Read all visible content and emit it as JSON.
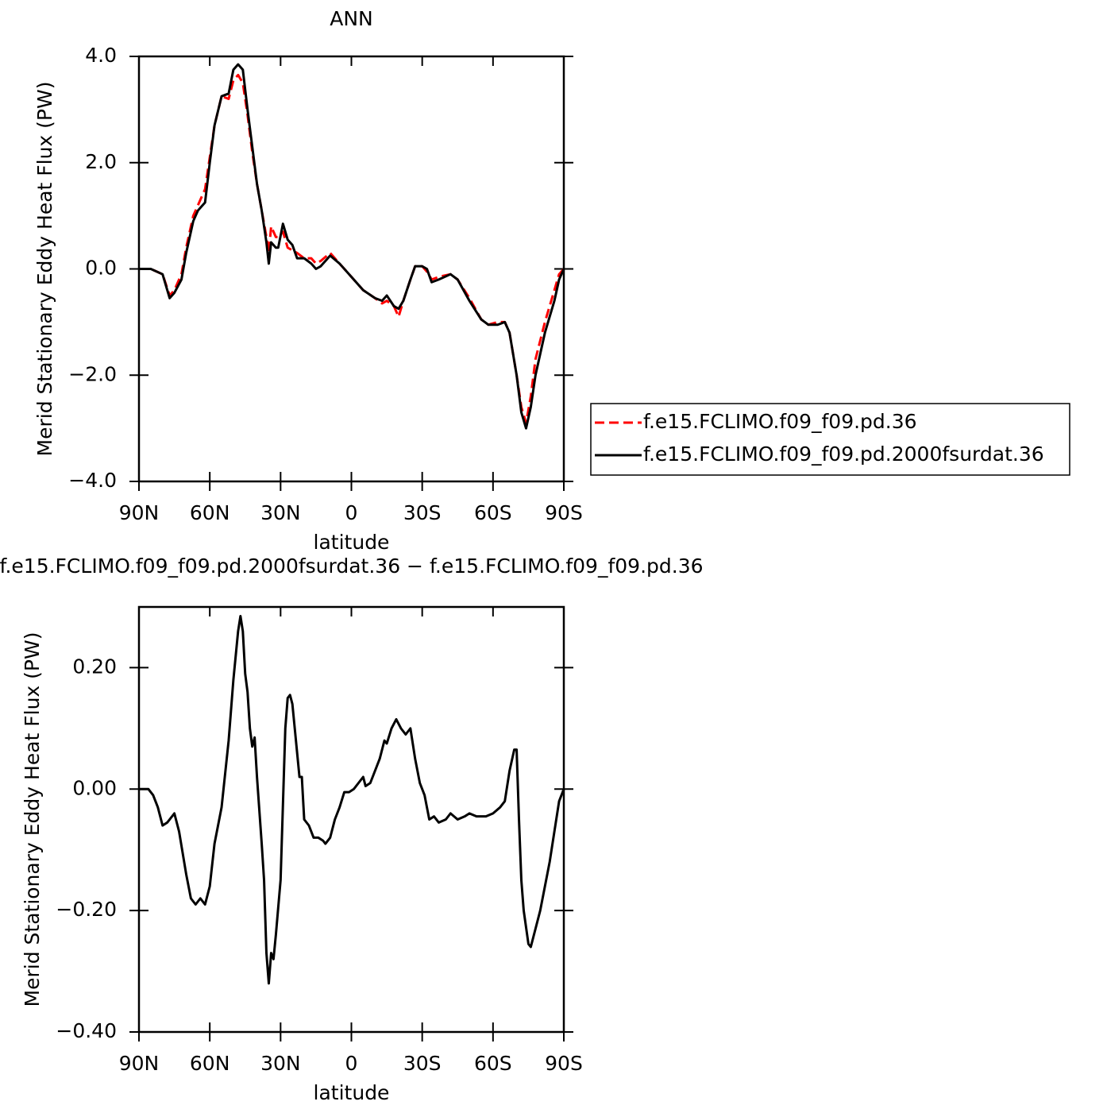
{
  "chart_data": [
    {
      "type": "line",
      "title": "ANN",
      "x_label": "latitude",
      "y_label": "Merid Stationary Eddy Heat Flux (PW)",
      "xlim": [
        90,
        -90
      ],
      "xticks": [
        {
          "value": 90,
          "label": "90N"
        },
        {
          "value": 60,
          "label": "60N"
        },
        {
          "value": 30,
          "label": "30N"
        },
        0,
        {
          "value": -30,
          "label": "30S"
        },
        {
          "value": -60,
          "label": "60S"
        },
        {
          "value": -90,
          "label": "90S"
        }
      ],
      "ylim": [
        -4,
        4
      ],
      "yticks": [
        {
          "value": -4,
          "label": "−4.0"
        },
        {
          "value": -2,
          "label": "−2.0"
        },
        {
          "value": 0,
          "label": "0.0"
        },
        {
          "value": 2,
          "label": "2.0"
        },
        {
          "value": 4,
          "label": "4.0"
        }
      ],
      "x": [
        90,
        85,
        80,
        77,
        75,
        72,
        70,
        67,
        65,
        62,
        60,
        58,
        55,
        52,
        50,
        48,
        46,
        44,
        42,
        40,
        38,
        36,
        35,
        34,
        32,
        31,
        29,
        27,
        25,
        23,
        20,
        17,
        15,
        13,
        9,
        5,
        0,
        -5,
        -10,
        -13,
        -15,
        -18,
        -20,
        -22,
        -25,
        -27,
        -30,
        -32,
        -34,
        -37,
        -42,
        -45,
        -50,
        -55,
        -58,
        -62,
        -65,
        -67,
        -70,
        -72,
        -74,
        -76,
        -78,
        -82,
        -86,
        -88,
        -90
      ],
      "series": [
        {
          "name": "f.e15.FCLIMO.f09_f09.pd.36",
          "color": "#ff0000",
          "dashed": true,
          "values": [
            0,
            0,
            -0.1,
            -0.5,
            -0.4,
            -0.1,
            0.4,
            1.0,
            1.2,
            1.5,
            2.1,
            2.7,
            3.25,
            3.2,
            3.55,
            3.65,
            3.5,
            2.9,
            2.2,
            1.6,
            1.1,
            0.6,
            0.3,
            0.8,
            0.6,
            0.6,
            0.7,
            0.4,
            0.35,
            0.3,
            0.2,
            0.2,
            0.1,
            0.15,
            0.3,
            0.1,
            -0.15,
            -0.4,
            -0.55,
            -0.65,
            -0.6,
            -0.7,
            -0.9,
            -0.6,
            -0.2,
            0.05,
            0.05,
            -0.05,
            -0.2,
            -0.15,
            -0.1,
            -0.2,
            -0.55,
            -0.95,
            -1.05,
            -1.0,
            -1.0,
            -1.2,
            -2.0,
            -2.6,
            -2.9,
            -2.4,
            -1.7,
            -1.0,
            -0.4,
            -0.1,
            0
          ]
        },
        {
          "name": "f.e15.FCLIMO.f09_f09.pd.2000fsurdat.36",
          "color": "#000000",
          "dashed": false,
          "values": [
            0,
            0,
            -0.1,
            -0.55,
            -0.45,
            -0.2,
            0.3,
            0.9,
            1.1,
            1.25,
            2.0,
            2.7,
            3.25,
            3.3,
            3.75,
            3.85,
            3.75,
            3.0,
            2.3,
            1.6,
            1.1,
            0.5,
            0.1,
            0.5,
            0.4,
            0.4,
            0.85,
            0.55,
            0.45,
            0.2,
            0.2,
            0.1,
            0.0,
            0.05,
            0.25,
            0.1,
            -0.15,
            -0.4,
            -0.55,
            -0.6,
            -0.5,
            -0.7,
            -0.75,
            -0.6,
            -0.2,
            0.05,
            0.05,
            0.0,
            -0.25,
            -0.2,
            -0.1,
            -0.2,
            -0.6,
            -0.95,
            -1.05,
            -1.05,
            -1.0,
            -1.2,
            -2.0,
            -2.7,
            -3.0,
            -2.6,
            -2.0,
            -1.2,
            -0.6,
            -0.2,
            0
          ]
        }
      ],
      "legend": "right"
    },
    {
      "type": "line",
      "title": "f.e15.FCLIMO.f09_f09.pd.2000fsurdat.36 − f.e15.FCLIMO.f09_f09.pd.36",
      "x_label": "latitude",
      "y_label": "Merid Stationary Eddy Heat Flux (PW)",
      "xlim": [
        90,
        -90
      ],
      "xticks": [
        {
          "value": 90,
          "label": "90N"
        },
        {
          "value": 60,
          "label": "60N"
        },
        {
          "value": 30,
          "label": "30N"
        },
        0,
        {
          "value": -30,
          "label": "30S"
        },
        {
          "value": -60,
          "label": "60S"
        },
        {
          "value": -90,
          "label": "90S"
        }
      ],
      "ylim": [
        -0.4,
        0.3
      ],
      "yticks": [
        {
          "value": -0.4,
          "label": "−0.40"
        },
        {
          "value": -0.2,
          "label": "−0.20"
        },
        {
          "value": 0,
          "label": "0.00"
        },
        {
          "value": 0.2,
          "label": "0.20"
        }
      ],
      "x": [
        90,
        86,
        84,
        82,
        80,
        78,
        75,
        73,
        70,
        68,
        66,
        64,
        62,
        60,
        58,
        55,
        52,
        50,
        48,
        47,
        46,
        45,
        44,
        43,
        42,
        41,
        40,
        38,
        37,
        36,
        35,
        34,
        33,
        32,
        30,
        28,
        27,
        26,
        25,
        24,
        23,
        22,
        21,
        20,
        18,
        16,
        14,
        12,
        11,
        9,
        7,
        5,
        3,
        1,
        -1,
        -3,
        -5,
        -6,
        -8,
        -10,
        -12,
        -14,
        -15,
        -17,
        -19,
        -21,
        -23,
        -25,
        -27,
        -29,
        -31,
        -33,
        -35,
        -37,
        -40,
        -42,
        -45,
        -48,
        -50,
        -53,
        -57,
        -60,
        -63,
        -65,
        -67,
        -69,
        -70,
        -71,
        -72,
        -73,
        -75,
        -76,
        -78,
        -80,
        -82,
        -84,
        -86,
        -88,
        -90
      ],
      "color": "#000000",
      "values": [
        0,
        0,
        -0.01,
        -0.03,
        -0.06,
        -0.055,
        -0.04,
        -0.07,
        -0.14,
        -0.18,
        -0.19,
        -0.18,
        -0.19,
        -0.16,
        -0.09,
        -0.03,
        0.08,
        0.18,
        0.26,
        0.285,
        0.26,
        0.19,
        0.16,
        0.1,
        0.07,
        0.085,
        0.02,
        -0.09,
        -0.15,
        -0.27,
        -0.32,
        -0.27,
        -0.28,
        -0.24,
        -0.15,
        0.1,
        0.15,
        0.155,
        0.14,
        0.1,
        0.06,
        0.02,
        0.02,
        -0.05,
        -0.06,
        -0.08,
        -0.08,
        -0.085,
        -0.09,
        -0.08,
        -0.05,
        -0.03,
        -0.005,
        -0.005,
        0.0,
        0.01,
        0.02,
        0.005,
        0.01,
        0.03,
        0.05,
        0.08,
        0.075,
        0.1,
        0.115,
        0.1,
        0.09,
        0.1,
        0.05,
        0.01,
        -0.01,
        -0.05,
        -0.045,
        -0.055,
        -0.05,
        -0.04,
        -0.05,
        -0.045,
        -0.04,
        -0.045,
        -0.045,
        -0.04,
        -0.03,
        -0.02,
        0.03,
        0.065,
        0.065,
        -0.05,
        -0.15,
        -0.2,
        -0.255,
        -0.26,
        -0.23,
        -0.2,
        -0.16,
        -0.12,
        -0.07,
        -0.02,
        0
      ]
    }
  ]
}
